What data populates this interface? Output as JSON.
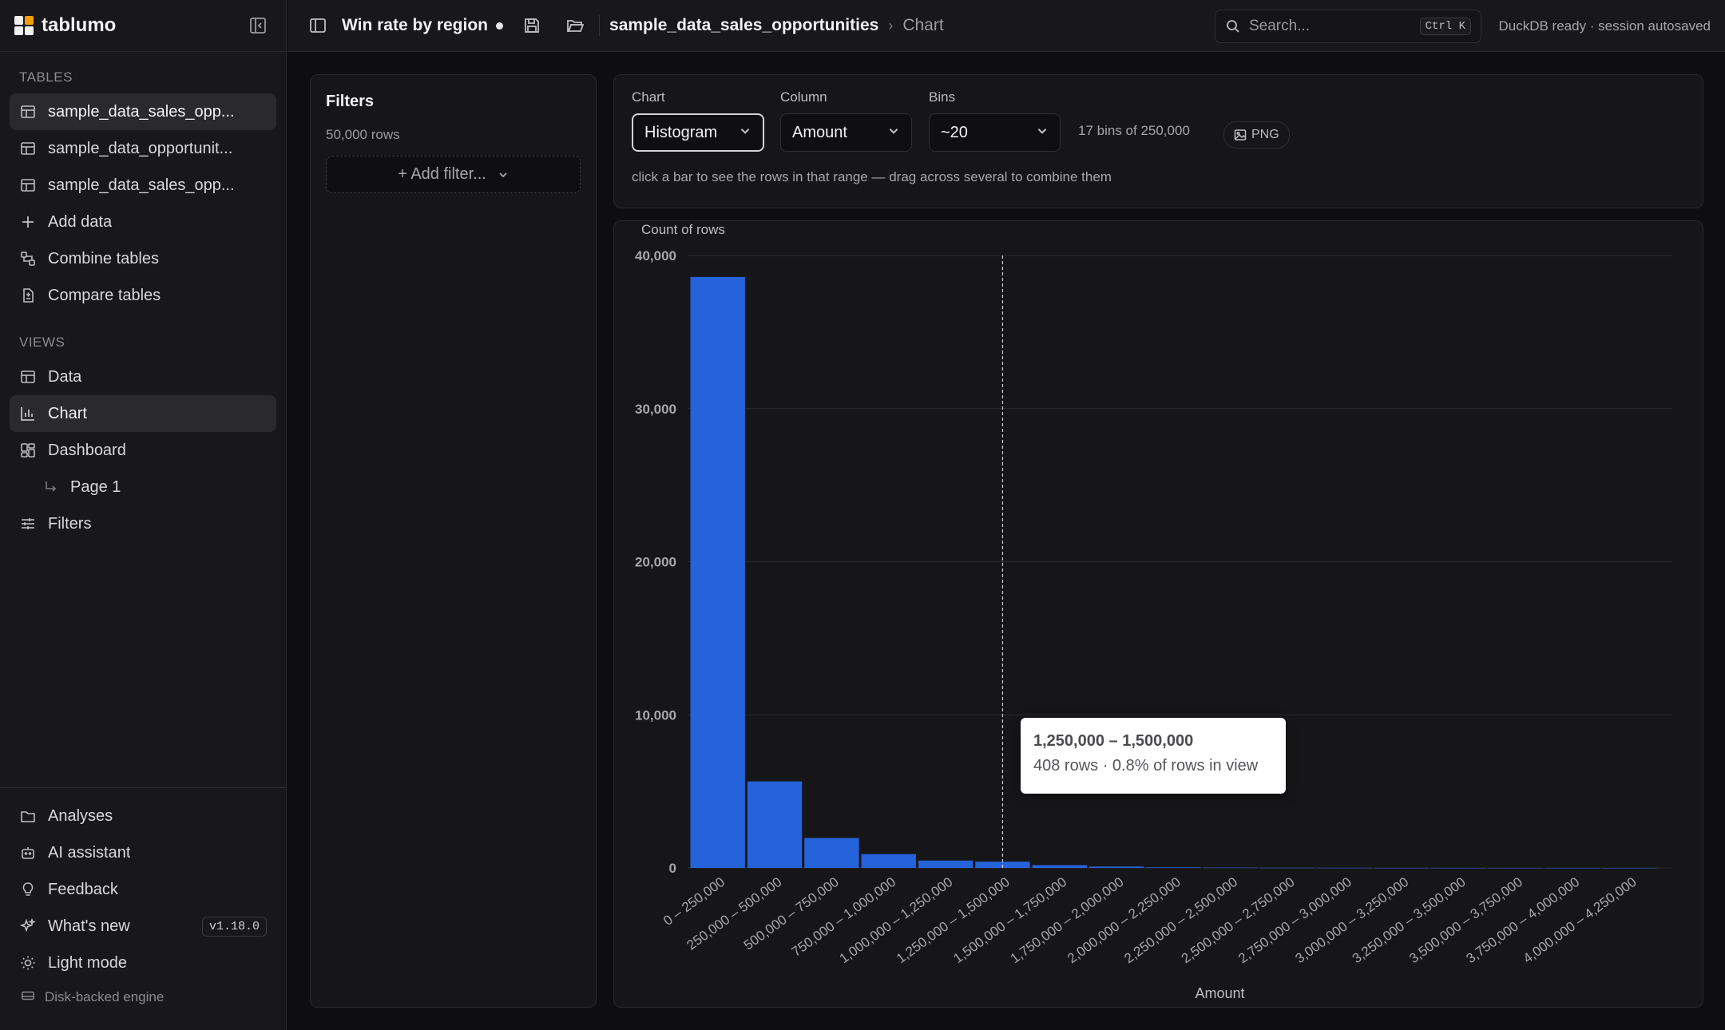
{
  "brand": {
    "name": "tablumo"
  },
  "sidebar": {
    "tables_heading": "TABLES",
    "tables": [
      {
        "label": "sample_data_sales_opp..."
      },
      {
        "label": "sample_data_opportunit..."
      },
      {
        "label": "sample_data_sales_opp..."
      }
    ],
    "actions": [
      {
        "label": "Add data"
      },
      {
        "label": "Combine tables"
      },
      {
        "label": "Compare tables"
      }
    ],
    "views_heading": "VIEWS",
    "views": [
      {
        "label": "Data"
      },
      {
        "label": "Chart"
      },
      {
        "label": "Dashboard"
      },
      {
        "label": "Page 1"
      },
      {
        "label": "Filters"
      }
    ],
    "bottom": [
      {
        "label": "Analyses"
      },
      {
        "label": "AI assistant"
      },
      {
        "label": "Feedback"
      },
      {
        "label": "What's new"
      },
      {
        "label": "Light mode"
      }
    ],
    "version": "v1.18.0",
    "engine": "Disk-backed engine"
  },
  "topbar": {
    "doc_title": "Win rate by region",
    "breadcrumb_table": "sample_data_sales_opportunities",
    "breadcrumb_view": "Chart",
    "search_placeholder": "Search...",
    "search_shortcut": "Ctrl K",
    "status": "DuckDB ready · session autosaved"
  },
  "filters": {
    "title": "Filters",
    "row_count": "50,000 rows",
    "add_filter": "+ Add filter..."
  },
  "controls": {
    "chart_label": "Chart",
    "chart_value": "Histogram",
    "column_label": "Column",
    "column_value": "Amount",
    "bins_label": "Bins",
    "bins_value": "~20",
    "bins_info": "17 bins of 250,000",
    "png": "PNG",
    "hint": "click a bar to see the rows in that range — drag across several to combine them"
  },
  "tooltip": {
    "title": "1,250,000 – 1,500,000",
    "body": "408 rows · 0.8% of rows in view"
  },
  "colors": {
    "bar": "#2563db",
    "panel": "#161618",
    "accent": "#f59e0b"
  },
  "chart_data": {
    "type": "bar",
    "title": "",
    "ylabel": "Count of rows",
    "xlabel": "Amount",
    "ylim": [
      0,
      40000
    ],
    "yticks": [
      0,
      10000,
      20000,
      30000,
      40000
    ],
    "ytick_labels": [
      "0",
      "10,000",
      "20,000",
      "30,000",
      "40,000"
    ],
    "grid": true,
    "categories": [
      "0 – 250,000",
      "250,000 – 500,000",
      "500,000 – 750,000",
      "750,000 – 1,000,000",
      "1,000,000 – 1,250,000",
      "1,250,000 – 1,500,000",
      "1,500,000 – 1,750,000",
      "1,750,000 – 2,000,000",
      "2,000,000 – 2,250,000",
      "2,250,000 – 2,500,000",
      "2,500,000 – 2,750,000",
      "2,750,000 – 3,000,000",
      "3,000,000 – 3,250,000",
      "3,250,000 – 3,500,000",
      "3,500,000 – 3,750,000",
      "3,750,000 – 4,000,000",
      "4,000,000 – 4,250,000"
    ],
    "values": [
      38600,
      5650,
      1950,
      900,
      480,
      408,
      180,
      90,
      40,
      20,
      10,
      6,
      4,
      3,
      2,
      1,
      1
    ],
    "hover_category": "1,250,000 – 1,500,000"
  }
}
